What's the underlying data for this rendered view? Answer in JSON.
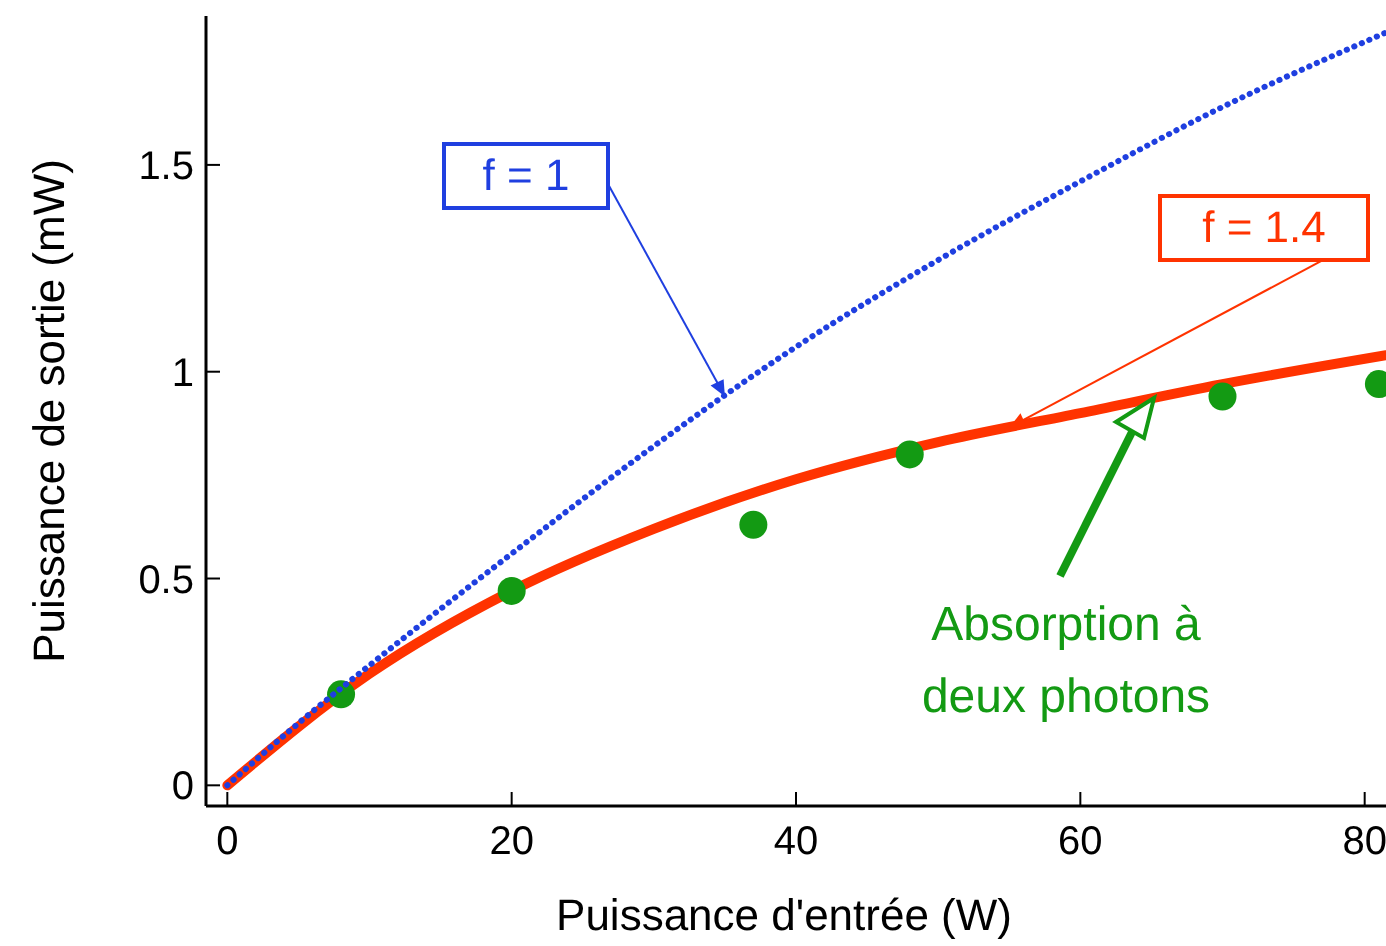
{
  "chart_data": {
    "type": "line",
    "xlabel": "Puissance d'entrée (W)",
    "ylabel": "Puissance de sortie (mW)",
    "xlim": [
      -1.5,
      81.5
    ],
    "ylim": [
      -0.05,
      1.86
    ],
    "xticks": [
      0,
      20,
      40,
      60,
      80
    ],
    "yticks": [
      0,
      0.5,
      1,
      1.5
    ],
    "series": [
      {
        "name": "f = 1",
        "color": "#1f3fe0",
        "line_style": "dotted",
        "x": [
          0,
          5,
          10,
          20,
          30,
          40,
          50,
          60,
          70,
          81.5
        ],
        "values": [
          0,
          0.15,
          0.29,
          0.56,
          0.82,
          1.06,
          1.27,
          1.46,
          1.64,
          1.82
        ]
      },
      {
        "name": "f = 1.4",
        "color": "#ff3300",
        "line_style": "solid",
        "x": [
          0,
          10,
          20,
          30,
          40,
          50,
          60,
          70,
          81.5
        ],
        "values": [
          0,
          0.27,
          0.47,
          0.62,
          0.74,
          0.83,
          0.9,
          0.97,
          1.04
        ]
      },
      {
        "type": "scatter",
        "color": "#139a13",
        "marker": "circle",
        "x": [
          8,
          20,
          37,
          48,
          70,
          81
        ],
        "values": [
          0.22,
          0.47,
          0.63,
          0.8,
          0.94,
          0.97
        ]
      }
    ],
    "annotations": [
      "Absorption à deux photons"
    ]
  }
}
